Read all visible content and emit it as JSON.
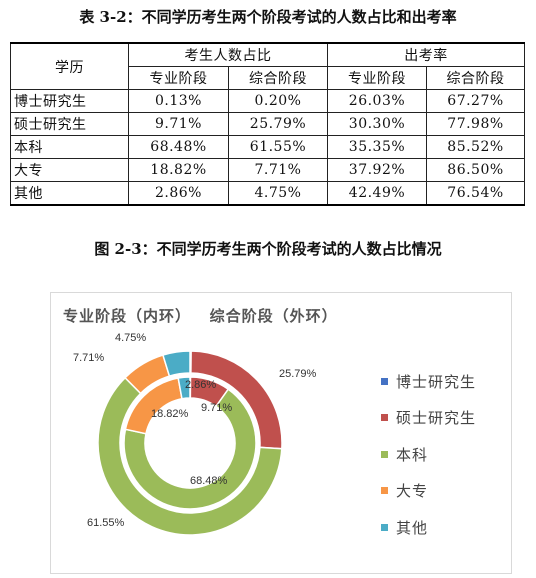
{
  "table": {
    "caption": "表 3-2：不同学历考生两个阶段考试的人数占比和出考率",
    "col_header": "学历",
    "group_headers": [
      "考生人数占比",
      "出考率"
    ],
    "sub_headers": [
      "专业阶段",
      "综合阶段",
      "专业阶段",
      "综合阶段"
    ],
    "rows": [
      {
        "label": "博士研究生",
        "cells": [
          "0.13%",
          "0.20%",
          "26.03%",
          "67.27%"
        ]
      },
      {
        "label": "硕士研究生",
        "cells": [
          "9.71%",
          "25.79%",
          "30.30%",
          "77.98%"
        ]
      },
      {
        "label": "本科",
        "cells": [
          "68.48%",
          "61.55%",
          "35.35%",
          "85.52%"
        ]
      },
      {
        "label": "大专",
        "cells": [
          "18.82%",
          "7.71%",
          "37.92%",
          "86.50%"
        ]
      },
      {
        "label": "其他",
        "cells": [
          "2.86%",
          "4.75%",
          "42.49%",
          "76.54%"
        ]
      }
    ]
  },
  "figure": {
    "caption": "图 2-3：不同学历考生两个阶段考试的人数占比情况"
  },
  "chart_data": {
    "type": "pie",
    "subtype": "donut",
    "title": "专业阶段（内环）   综合阶段（外环）",
    "categories": [
      "博士研究生",
      "硕士研究生",
      "本科",
      "大专",
      "其他"
    ],
    "colors": [
      "#4472C4",
      "#C0504D",
      "#9BBB59",
      "#F79646",
      "#4BACC6"
    ],
    "series": [
      {
        "name": "专业阶段（内环）",
        "ring": "inner",
        "values": [
          0.13,
          9.71,
          68.48,
          18.82,
          2.86
        ],
        "labels": [
          "",
          "9.71%",
          "68.48%",
          "18.82%",
          "2.86%"
        ]
      },
      {
        "name": "综合阶段（外环）",
        "ring": "outer",
        "values": [
          0.2,
          25.79,
          61.55,
          7.71,
          4.75
        ],
        "labels": [
          "",
          "25.79%",
          "61.55%",
          "7.71%",
          "4.75%"
        ]
      }
    ],
    "legend_position": "right"
  }
}
